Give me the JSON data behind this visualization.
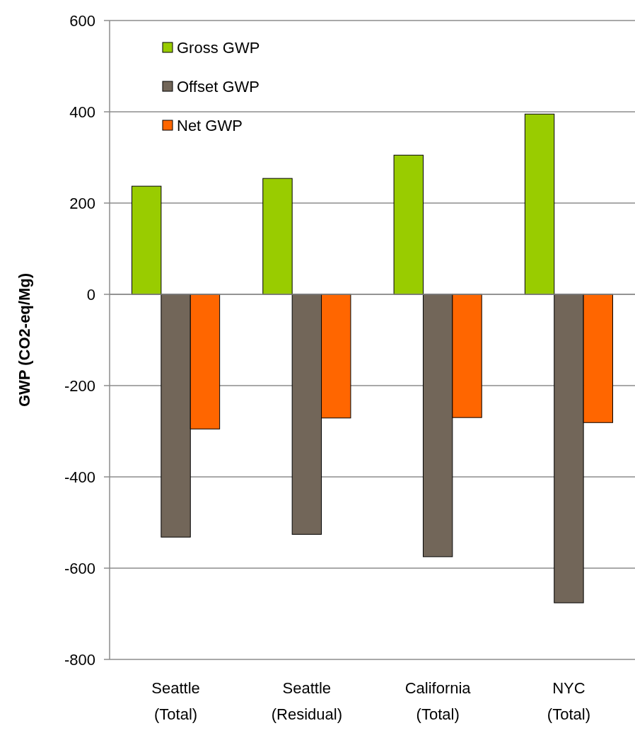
{
  "chart_data": {
    "type": "bar",
    "ylabel": "GWP (CO2-eq/Mg)",
    "categories": [
      "Seattle (Total)",
      "Seattle (Residual)",
      "California (Total)",
      "NYC (Total)"
    ],
    "series": [
      {
        "name": "Gross GWP",
        "color": "#99cc00",
        "values": [
          237,
          254,
          305,
          395
        ]
      },
      {
        "name": "Offset GWP",
        "color": "#726659",
        "values": [
          -532,
          -526,
          -575,
          -676
        ]
      },
      {
        "name": "Net GWP",
        "color": "#ff6600",
        "values": [
          -295,
          -271,
          -270,
          -281
        ]
      }
    ],
    "ylim": [
      -800,
      600
    ],
    "yticks": [
      -800,
      -600,
      -400,
      -200,
      0,
      200,
      400,
      600
    ],
    "grid": "y",
    "legend": "top left"
  }
}
